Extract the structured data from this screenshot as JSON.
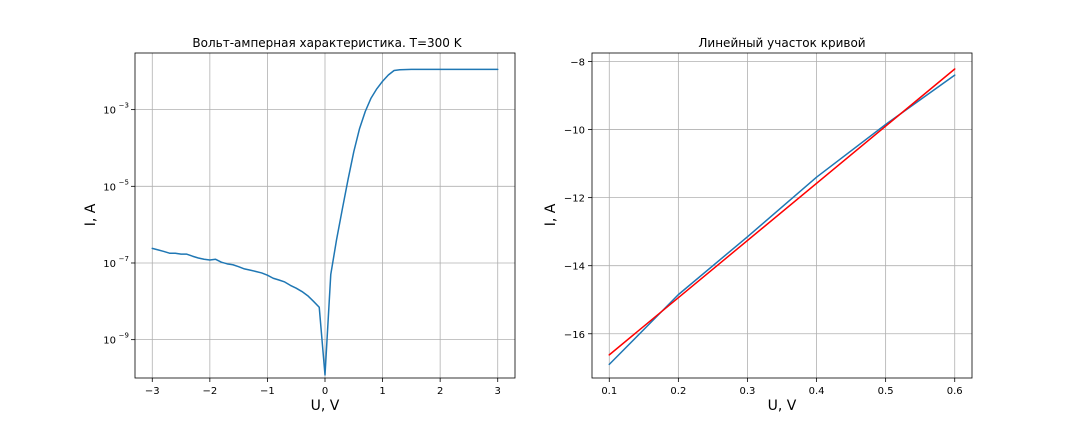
{
  "chart_data": [
    {
      "type": "line",
      "title": "Вольт-амперная характеристика. T=300 K",
      "xlabel": "U, V",
      "ylabel": "I, A",
      "yscale": "log",
      "grid": true,
      "xlim": [
        -3.3,
        3.3
      ],
      "ylim": [
        1e-10,
        0.03
      ],
      "xticks": [
        -3,
        -2,
        -1,
        0,
        1,
        2,
        3
      ],
      "xtick_labels": [
        "−3",
        "−2",
        "−1",
        "0",
        "1",
        "2",
        "3"
      ],
      "yticks": [
        1e-09,
        1e-07,
        1e-05,
        0.001
      ],
      "ytick_labels": [
        {
          "base": "10",
          "exp": "−9"
        },
        {
          "base": "10",
          "exp": "−7"
        },
        {
          "base": "10",
          "exp": "−5"
        },
        {
          "base": "10",
          "exp": "−3"
        }
      ],
      "series": [
        {
          "color": "#1f77b4",
          "x": [
            -3.0,
            -2.9,
            -2.8,
            -2.7,
            -2.6,
            -2.5,
            -2.4,
            -2.3,
            -2.2,
            -2.1,
            -2.0,
            -1.9,
            -1.8,
            -1.7,
            -1.6,
            -1.5,
            -1.4,
            -1.3,
            -1.2,
            -1.1,
            -1.0,
            -0.9,
            -0.8,
            -0.7,
            -0.6,
            -0.5,
            -0.4,
            -0.3,
            -0.2,
            -0.1,
            0.0,
            0.1,
            0.2,
            0.3,
            0.4,
            0.5,
            0.6,
            0.7,
            0.8,
            0.9,
            1.0,
            1.1,
            1.2,
            1.3,
            1.5,
            2.0,
            2.5,
            3.0
          ],
          "y": [
            2.4e-07,
            2.2e-07,
            2e-07,
            1.8e-07,
            1.8e-07,
            1.7e-07,
            1.7e-07,
            1.5e-07,
            1.35e-07,
            1.25e-07,
            1.2e-07,
            1.25e-07,
            1.05e-07,
            9.5e-08,
            9e-08,
            8e-08,
            7e-08,
            6.5e-08,
            6e-08,
            5.5e-08,
            4.8e-08,
            4e-08,
            3.6e-08,
            3.2e-08,
            2.6e-08,
            2.2e-08,
            1.8e-08,
            1.4e-08,
            1e-08,
            7e-09,
            1.2e-10,
            5e-08,
            4e-07,
            2.5e-06,
            1.5e-05,
            8e-05,
            0.00032,
            0.0009,
            0.002,
            0.0035,
            0.0055,
            0.008,
            0.0105,
            0.011,
            0.0112,
            0.0112,
            0.0112,
            0.0112
          ]
        }
      ]
    },
    {
      "type": "line",
      "title": "Линейный участок кривой",
      "xlabel": "U, V",
      "ylabel": "I, A",
      "yscale": "linear",
      "grid": true,
      "xlim": [
        0.075,
        0.625
      ],
      "ylim": [
        -17.3,
        -7.75
      ],
      "xticks": [
        0.1,
        0.2,
        0.3,
        0.4,
        0.5,
        0.6
      ],
      "xtick_labels": [
        "0.1",
        "0.2",
        "0.3",
        "0.4",
        "0.5",
        "0.6"
      ],
      "yticks": [
        -16,
        -14,
        -12,
        -10,
        -8
      ],
      "ytick_labels": [
        "−16",
        "−14",
        "−12",
        "−10",
        "−8"
      ],
      "series": [
        {
          "color": "#1f77b4",
          "x": [
            0.1,
            0.2,
            0.3,
            0.4,
            0.5,
            0.6
          ],
          "y": [
            -16.9,
            -14.85,
            -13.15,
            -11.4,
            -9.85,
            -8.4
          ]
        },
        {
          "color": "#ff0000",
          "x": [
            0.1,
            0.6
          ],
          "y": [
            -16.62,
            -8.22
          ]
        }
      ]
    }
  ]
}
